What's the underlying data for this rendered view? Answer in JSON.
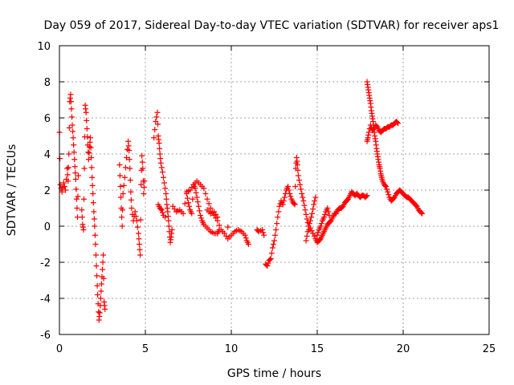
{
  "chart_data": {
    "type": "scatter",
    "title": "Day 059 of 2017, Sidereal Day-to-day VTEC variation (SDTVAR) for receiver aps1",
    "xlabel": "GPS time / hours",
    "ylabel": "SDTVAR / TECUs",
    "xlim": [
      0,
      25
    ],
    "ylim": [
      -6,
      10
    ],
    "xticks": [
      0,
      5,
      10,
      15,
      20,
      25
    ],
    "xtick_labels": [
      "0",
      "5",
      "10",
      "15",
      "20",
      "25"
    ],
    "yticks": [
      -6,
      -4,
      -2,
      0,
      2,
      4,
      6,
      8,
      10
    ],
    "ytick_labels": [
      "-6",
      "-4",
      "-2",
      "0",
      "2",
      "4",
      "6",
      "8",
      "10"
    ],
    "grid": true,
    "marker": "+",
    "series": [
      {
        "name": "aps1",
        "color": "#ff0000",
        "segments": [
          [
            [
              0.0,
              5.2
            ],
            [
              0.05,
              2.3
            ],
            [
              0.15,
              1.9
            ],
            [
              0.25,
              2.4
            ],
            [
              0.35,
              2.0
            ],
            [
              0.45,
              3.2
            ],
            [
              0.5,
              2.5
            ],
            [
              0.55,
              4.0
            ],
            [
              0.6,
              6.9
            ],
            [
              0.65,
              7.3
            ],
            [
              0.7,
              6.5
            ],
            [
              0.75,
              5.6
            ],
            [
              0.8,
              4.9
            ],
            [
              0.85,
              4.1
            ],
            [
              0.9,
              3.3
            ],
            [
              0.95,
              2.6
            ],
            [
              1.0,
              1.5
            ],
            [
              1.05,
              0.5
            ],
            [
              1.1,
              2.8
            ]
          ],
          [
            [
              1.3,
              0.9
            ],
            [
              1.35,
              0.1
            ],
            [
              1.4,
              -0.2
            ],
            [
              1.45,
              3.2
            ],
            [
              1.5,
              6.7
            ],
            [
              1.55,
              6.3
            ],
            [
              1.6,
              5.4
            ],
            [
              1.65,
              4.5
            ],
            [
              1.7,
              3.7
            ],
            [
              1.75,
              4.4
            ],
            [
              1.8,
              4.9
            ],
            [
              1.85,
              3.8
            ],
            [
              1.9,
              2.7
            ],
            [
              1.95,
              1.8
            ],
            [
              2.0,
              0.8
            ],
            [
              2.05,
              0.0
            ],
            [
              2.1,
              -1.0
            ],
            [
              2.15,
              -2.2
            ],
            [
              2.2,
              -3.3
            ],
            [
              2.25,
              -4.3
            ],
            [
              2.3,
              -5.2
            ],
            [
              2.35,
              -4.8
            ],
            [
              2.4,
              -4.0
            ],
            [
              2.45,
              -3.2
            ],
            [
              2.5,
              -2.4
            ],
            [
              2.55,
              -1.6
            ],
            [
              2.6,
              -4.2
            ],
            [
              2.65,
              -4.6
            ]
          ],
          [
            [
              3.5,
              3.4
            ],
            [
              3.55,
              2.2
            ],
            [
              3.6,
              1.0
            ],
            [
              3.65,
              0.0
            ],
            [
              3.7,
              1.8
            ],
            [
              3.8,
              2.7
            ],
            [
              3.9,
              3.8
            ],
            [
              4.0,
              4.7
            ],
            [
              4.05,
              4.2
            ],
            [
              4.1,
              3.2
            ],
            [
              4.15,
              1.9
            ],
            [
              4.2,
              1.0
            ],
            [
              4.3,
              0.3
            ],
            [
              4.4,
              0.8
            ],
            [
              4.5,
              0.3
            ],
            [
              4.6,
              -0.4
            ],
            [
              4.65,
              -1.0
            ],
            [
              4.7,
              -1.6
            ],
            [
              4.75,
              2.3
            ],
            [
              4.8,
              3.9
            ],
            [
              4.85,
              3.2
            ],
            [
              4.9,
              1.8
            ],
            [
              4.95,
              2.5
            ]
          ],
          [
            [
              5.5,
              4.9
            ],
            [
              5.6,
              5.8
            ],
            [
              5.7,
              6.3
            ],
            [
              5.75,
              5.0
            ],
            [
              5.8,
              4.6
            ],
            [
              5.85,
              4.0
            ],
            [
              5.9,
              3.5
            ],
            [
              6.0,
              3.0
            ],
            [
              6.1,
              2.4
            ],
            [
              6.2,
              1.8
            ],
            [
              6.25,
              1.2
            ],
            [
              6.3,
              0.8
            ],
            [
              6.35,
              0.3
            ],
            [
              6.4,
              -0.3
            ],
            [
              6.45,
              -0.9
            ],
            [
              6.5,
              -0.6
            ],
            [
              6.55,
              -0.2
            ],
            [
              5.75,
              1.2
            ],
            [
              5.85,
              1.0
            ],
            [
              5.95,
              0.9
            ],
            [
              6.05,
              0.6
            ]
          ],
          [
            [
              6.6,
              1.1
            ],
            [
              6.8,
              0.8
            ],
            [
              7.0,
              0.9
            ],
            [
              7.2,
              0.7
            ],
            [
              7.4,
              1.8
            ],
            [
              7.5,
              1.3
            ],
            [
              7.6,
              0.9
            ],
            [
              7.7,
              0.7
            ],
            [
              7.8,
              2.3
            ],
            [
              7.9,
              2.1
            ],
            [
              8.0,
              1.6
            ],
            [
              8.1,
              1.1
            ],
            [
              8.2,
              0.6
            ],
            [
              8.3,
              0.3
            ],
            [
              8.4,
              0.1
            ],
            [
              8.6,
              -0.1
            ],
            [
              8.8,
              -0.3
            ],
            [
              9.0,
              -0.4
            ],
            [
              9.2,
              -0.4
            ],
            [
              9.3,
              -0.2
            ]
          ],
          [
            [
              7.4,
              1.9
            ],
            [
              7.6,
              2.0
            ],
            [
              7.8,
              2.3
            ],
            [
              8.0,
              2.5
            ],
            [
              8.2,
              2.3
            ],
            [
              8.4,
              2.1
            ],
            [
              8.6,
              1.5
            ],
            [
              8.8,
              1.0
            ],
            [
              9.0,
              0.6
            ],
            [
              9.2,
              0.3
            ],
            [
              9.4,
              -0.2
            ],
            [
              9.6,
              -0.4
            ],
            [
              9.8,
              -0.7
            ],
            [
              10.0,
              -0.5
            ],
            [
              10.2,
              -0.3
            ],
            [
              10.4,
              -0.2
            ],
            [
              10.6,
              -0.3
            ],
            [
              10.8,
              -0.5
            ],
            [
              10.9,
              -0.8
            ],
            [
              11.0,
              -1.0
            ],
            [
              8.6,
              0.9
            ],
            [
              8.8,
              0.7
            ],
            [
              9.0,
              0.8
            ],
            [
              9.2,
              0.5
            ]
          ],
          [
            [
              11.5,
              -0.2
            ],
            [
              11.6,
              -0.3
            ],
            [
              11.8,
              -0.2
            ],
            [
              11.9,
              -0.5
            ]
          ],
          [
            [
              12.0,
              -2.1
            ],
            [
              12.1,
              -2.2
            ],
            [
              12.2,
              -1.9
            ],
            [
              12.3,
              -1.8
            ],
            [
              12.4,
              -1.2
            ],
            [
              12.5,
              -0.8
            ],
            [
              12.6,
              -0.2
            ],
            [
              12.7,
              0.5
            ],
            [
              12.8,
              1.1
            ],
            [
              12.9,
              1.4
            ],
            [
              13.0,
              1.2
            ],
            [
              13.1,
              1.6
            ],
            [
              13.2,
              2.0
            ],
            [
              13.3,
              2.2
            ],
            [
              13.4,
              1.8
            ],
            [
              13.5,
              1.5
            ],
            [
              13.6,
              1.3
            ],
            [
              13.7,
              1.2
            ],
            [
              13.75,
              3.2
            ],
            [
              13.8,
              3.8
            ],
            [
              13.85,
              3.4
            ],
            [
              13.9,
              2.8
            ],
            [
              14.0,
              2.3
            ],
            [
              14.1,
              1.8
            ],
            [
              14.2,
              1.4
            ],
            [
              14.3,
              0.9
            ],
            [
              14.4,
              0.4
            ],
            [
              14.5,
              0.0
            ],
            [
              14.6,
              0.3
            ],
            [
              14.7,
              0.7
            ],
            [
              14.8,
              1.2
            ],
            [
              14.9,
              1.6
            ]
          ],
          [
            [
              14.35,
              -0.8
            ],
            [
              14.45,
              -0.3
            ],
            [
              14.6,
              -0.1
            ],
            [
              14.75,
              -0.4
            ],
            [
              14.9,
              -0.7
            ],
            [
              15.0,
              -0.9
            ],
            [
              15.1,
              -0.8
            ],
            [
              15.2,
              -0.7
            ],
            [
              15.3,
              -0.5
            ],
            [
              15.4,
              -0.3
            ],
            [
              15.5,
              -0.1
            ],
            [
              15.6,
              0.1
            ],
            [
              15.7,
              0.2
            ],
            [
              15.8,
              0.3
            ],
            [
              15.9,
              0.5
            ],
            [
              16.0,
              0.7
            ],
            [
              16.1,
              0.7
            ],
            [
              16.2,
              0.9
            ],
            [
              16.3,
              1.0
            ],
            [
              16.4,
              1.0
            ],
            [
              16.5,
              1.1
            ],
            [
              16.6,
              1.3
            ],
            [
              16.7,
              1.4
            ],
            [
              16.8,
              1.5
            ],
            [
              16.9,
              1.7
            ],
            [
              17.0,
              1.9
            ],
            [
              17.1,
              1.8
            ],
            [
              17.2,
              1.7
            ],
            [
              17.3,
              1.8
            ],
            [
              17.4,
              1.7
            ],
            [
              17.5,
              1.6
            ],
            [
              17.6,
              1.7
            ],
            [
              17.7,
              1.7
            ],
            [
              17.8,
              1.6
            ],
            [
              17.9,
              1.7
            ]
          ],
          [
            [
              15.0,
              -0.5
            ],
            [
              15.1,
              -0.2
            ],
            [
              15.2,
              0.0
            ],
            [
              15.3,
              0.3
            ],
            [
              15.4,
              0.5
            ],
            [
              15.5,
              0.8
            ],
            [
              15.6,
              1.0
            ],
            [
              15.7,
              0.6
            ]
          ],
          [
            [
              17.9,
              4.7
            ],
            [
              17.95,
              4.9
            ],
            [
              18.0,
              5.2
            ],
            [
              18.1,
              5.6
            ],
            [
              18.2,
              5.3
            ],
            [
              18.3,
              5.4
            ],
            [
              18.4,
              5.6
            ],
            [
              18.5,
              5.5
            ],
            [
              18.6,
              5.3
            ],
            [
              18.7,
              5.2
            ],
            [
              18.8,
              5.3
            ],
            [
              18.9,
              5.4
            ],
            [
              19.0,
              5.4
            ],
            [
              19.1,
              5.5
            ],
            [
              19.2,
              5.5
            ],
            [
              19.3,
              5.6
            ],
            [
              19.4,
              5.6
            ],
            [
              19.5,
              5.7
            ],
            [
              19.6,
              5.8
            ],
            [
              19.7,
              5.7
            ]
          ],
          [
            [
              17.9,
              8.0
            ],
            [
              17.95,
              7.7
            ],
            [
              18.0,
              7.4
            ],
            [
              18.05,
              7.1
            ],
            [
              18.1,
              6.8
            ],
            [
              18.15,
              6.4
            ],
            [
              18.2,
              6.1
            ],
            [
              18.25,
              5.8
            ],
            [
              18.3,
              5.4
            ],
            [
              18.35,
              5.0
            ],
            [
              18.4,
              4.7
            ],
            [
              18.45,
              4.3
            ],
            [
              18.5,
              4.0
            ],
            [
              18.55,
              3.7
            ],
            [
              18.6,
              3.4
            ],
            [
              18.65,
              3.2
            ],
            [
              18.7,
              2.9
            ],
            [
              18.75,
              2.7
            ],
            [
              18.8,
              2.5
            ],
            [
              18.9,
              2.3
            ],
            [
              19.0,
              2.2
            ],
            [
              19.1,
              1.9
            ],
            [
              19.2,
              1.6
            ],
            [
              19.3,
              1.4
            ],
            [
              19.4,
              1.5
            ],
            [
              19.5,
              1.6
            ],
            [
              19.6,
              1.8
            ],
            [
              19.7,
              1.9
            ],
            [
              19.8,
              2.0
            ],
            [
              19.9,
              1.9
            ],
            [
              20.0,
              1.8
            ],
            [
              20.1,
              1.7
            ],
            [
              20.2,
              1.6
            ],
            [
              20.3,
              1.6
            ],
            [
              20.4,
              1.5
            ],
            [
              20.5,
              1.4
            ],
            [
              20.6,
              1.3
            ],
            [
              20.7,
              1.2
            ],
            [
              20.8,
              1.1
            ],
            [
              20.9,
              0.9
            ],
            [
              21.0,
              0.8
            ],
            [
              21.1,
              0.7
            ]
          ]
        ]
      }
    ]
  }
}
